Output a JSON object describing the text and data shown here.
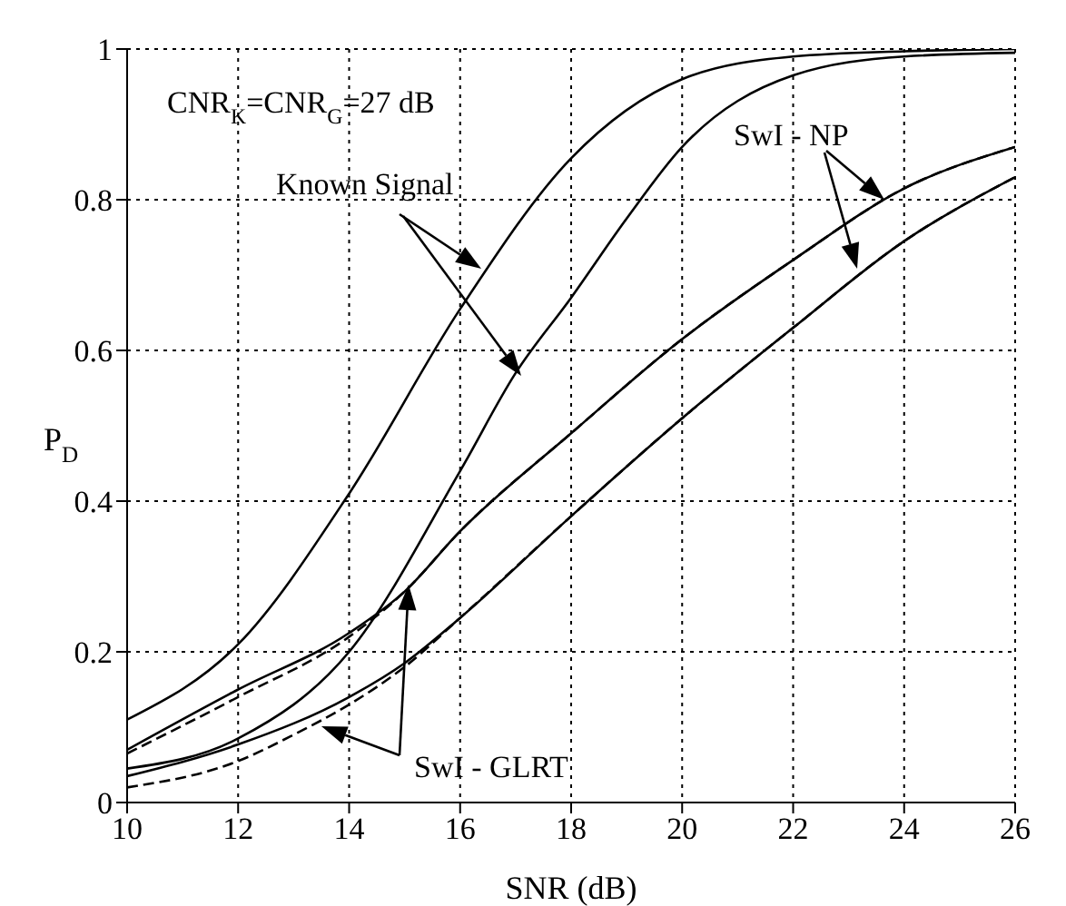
{
  "chart_data": {
    "type": "line",
    "xlabel": "SNR (dB)",
    "ylabel": "P$_{D}$",
    "annotations": [
      "CNR$_{K}$=CNR$_{G}$=27 dB",
      "Known Signal",
      "SwI - NP",
      "SwI - GLRT"
    ],
    "series": [
      {
        "color": "#000000",
        "x": [
          10,
          12,
          14,
          16,
          18,
          20,
          22,
          24,
          26
        ],
        "values": [
          0.11,
          0.21,
          0.41,
          0.655,
          0.855,
          0.96,
          0.99,
          0.997,
          1
        ]
      },
      {
        "color": "#000000",
        "x": [
          10,
          12,
          14,
          16,
          17,
          18,
          19,
          20,
          22,
          24,
          26
        ],
        "values": [
          0.045,
          0.085,
          0.2,
          0.44,
          0.57,
          0.67,
          0.775,
          0.87,
          0.965,
          0.99,
          0.995
        ]
      },
      {
        "color": "#000000",
        "x": [
          10,
          12,
          14,
          15,
          16,
          18,
          20,
          22,
          24,
          26
        ],
        "values": [
          0.07,
          0.15,
          0.225,
          0.28,
          0.36,
          0.49,
          0.615,
          0.72,
          0.815,
          0.87
        ]
      },
      {
        "color": "#000000",
        "line_style": "dashed",
        "x": [
          10,
          12,
          14,
          15,
          16,
          18,
          20,
          22,
          24,
          26
        ],
        "values": [
          0.065,
          0.14,
          0.22,
          0.28,
          0.36,
          0.49,
          0.615,
          0.72,
          0.815,
          0.87
        ]
      },
      {
        "color": "#000000",
        "x": [
          10,
          12,
          14,
          15,
          16,
          18,
          20,
          22,
          24,
          26
        ],
        "values": [
          0.035,
          0.077,
          0.14,
          0.185,
          0.245,
          0.38,
          0.51,
          0.63,
          0.745,
          0.83
        ]
      },
      {
        "color": "#000000",
        "line_style": "dashed",
        "x": [
          10,
          12,
          13,
          14,
          15,
          16,
          18,
          20,
          22,
          24,
          26
        ],
        "values": [
          0.02,
          0.055,
          0.09,
          0.13,
          0.18,
          0.245,
          0.38,
          0.51,
          0.63,
          0.745,
          0.83
        ]
      }
    ],
    "xlim": [
      10,
      26
    ],
    "xticks": [
      10,
      12,
      14,
      16,
      18,
      20,
      22,
      24,
      26
    ],
    "ylim": [
      0,
      1
    ],
    "yticks": [
      0,
      0.2,
      0.4,
      0.6,
      0.8,
      1
    ],
    "grid": true,
    "line_style": "solid",
    "marker": "none"
  }
}
